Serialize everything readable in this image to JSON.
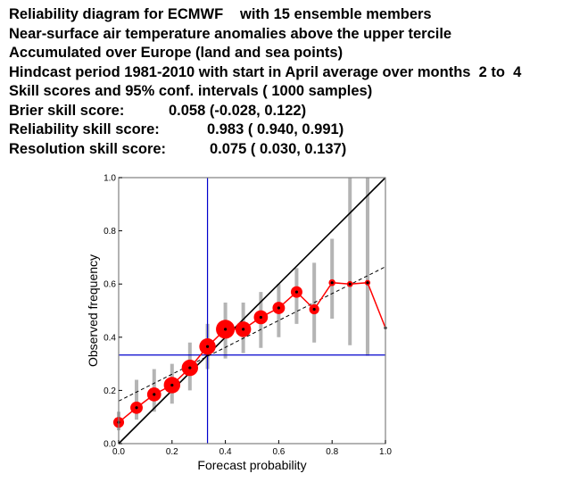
{
  "header": {
    "lines": [
      {
        "label": "Reliability diagram for ECMWF",
        "value": "with 15 ensemble members"
      },
      {
        "label": "Near-surface air temperature anomalies above the upper tercile",
        "value": ""
      },
      {
        "label": "Accumulated over Europe (land and sea points)",
        "value": ""
      },
      {
        "label": "Hindcast period 1981-2010 with start in April average over months  2 to  4",
        "value": ""
      },
      {
        "label": "Skill scores and 95% conf. intervals ( 1000 samples)",
        "value": ""
      },
      {
        "label": "Brier skill score:",
        "value": "0.058 (-0.028, 0.122)"
      },
      {
        "label": "Reliability skill score:",
        "value": "0.983 ( 0.940, 0.991)"
      },
      {
        "label": "Resolution skill score:",
        "value": "0.075 ( 0.030, 0.137)"
      }
    ]
  },
  "chart_data": {
    "type": "scatter",
    "xlabel": "Forecast probability",
    "ylabel": "Observed frequency",
    "xlim": [
      0,
      1
    ],
    "ylim": [
      0,
      1
    ],
    "xticks": [
      "0.0",
      "0.2",
      "0.4",
      "0.6",
      "0.8",
      "1.0"
    ],
    "yticks": [
      "0.0",
      "0.2",
      "0.4",
      "0.6",
      "0.8",
      "1.0"
    ],
    "climatology": 0.333,
    "regression_line": {
      "x": [
        0,
        1
      ],
      "y": [
        0.16,
        0.665
      ]
    },
    "points": [
      {
        "x": 0.0,
        "y": 0.08,
        "lo": 0.05,
        "hi": 0.12,
        "size": 0.45
      },
      {
        "x": 0.067,
        "y": 0.135,
        "lo": 0.09,
        "hi": 0.24,
        "size": 0.55
      },
      {
        "x": 0.133,
        "y": 0.185,
        "lo": 0.12,
        "hi": 0.28,
        "size": 0.65
      },
      {
        "x": 0.2,
        "y": 0.22,
        "lo": 0.15,
        "hi": 0.3,
        "size": 0.8
      },
      {
        "x": 0.267,
        "y": 0.285,
        "lo": 0.2,
        "hi": 0.38,
        "size": 0.8
      },
      {
        "x": 0.333,
        "y": 0.365,
        "lo": 0.28,
        "hi": 0.45,
        "size": 0.8
      },
      {
        "x": 0.4,
        "y": 0.43,
        "lo": 0.32,
        "hi": 0.53,
        "size": 0.95
      },
      {
        "x": 0.467,
        "y": 0.43,
        "lo": 0.34,
        "hi": 0.53,
        "size": 0.75
      },
      {
        "x": 0.533,
        "y": 0.475,
        "lo": 0.36,
        "hi": 0.57,
        "size": 0.65
      },
      {
        "x": 0.6,
        "y": 0.51,
        "lo": 0.4,
        "hi": 0.6,
        "size": 0.55
      },
      {
        "x": 0.667,
        "y": 0.57,
        "lo": 0.45,
        "hi": 0.66,
        "size": 0.5
      },
      {
        "x": 0.733,
        "y": 0.505,
        "lo": 0.38,
        "hi": 0.68,
        "size": 0.4
      },
      {
        "x": 0.8,
        "y": 0.605,
        "lo": 0.47,
        "hi": 0.77,
        "size": 0.2
      },
      {
        "x": 0.867,
        "y": 0.6,
        "lo": 0.37,
        "hi": 1.0,
        "size": 0.15
      },
      {
        "x": 0.933,
        "y": 0.605,
        "lo": 0.33,
        "hi": 1.0,
        "size": 0.12
      },
      {
        "x": 1.0,
        "y": 0.435,
        "lo": 0.0,
        "hi": 0.0,
        "size": 0.0
      }
    ],
    "colors": {
      "marker": "#ff0000",
      "center_dot": "#000000",
      "ci_bar": "#b4b4b4",
      "clim_line": "#0000cc",
      "diagonal": "#000000",
      "axes_frame": "#808080"
    }
  }
}
